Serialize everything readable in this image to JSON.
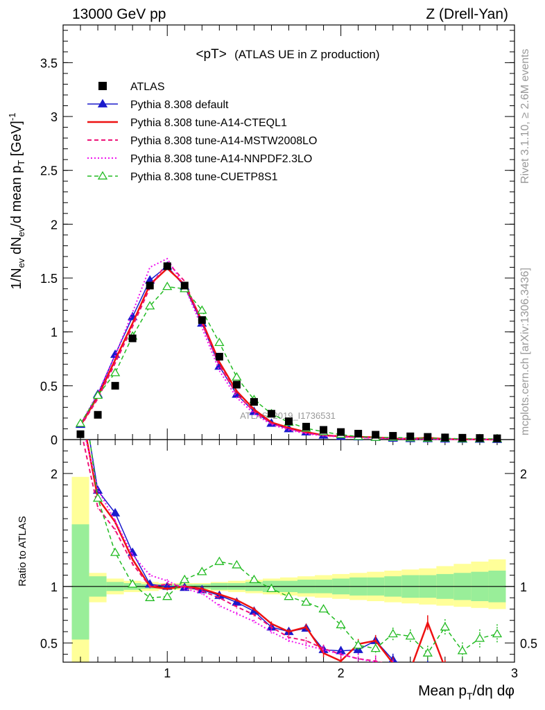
{
  "header": {
    "left": "13000 GeV pp",
    "right": "Z (Drell-Yan)"
  },
  "plot_title": "<pT>",
  "plot_subtitle": "(ATLAS UE in Z production)",
  "watermark": "ATLAS_2019_I1736531",
  "side_labels": {
    "top": "Rivet 3.1.10, ≥ 2.6M events",
    "bottom": "mcplots.cern.ch [arXiv:1306.3436]"
  },
  "axes": {
    "y_main": {
      "base": "1/N",
      "sub1": "ev",
      "mid": " dN",
      "sub2": "ev",
      "mid2": "/d mean p",
      "sub3": "T",
      "unit": " [GeV]",
      "sup": "-1"
    },
    "y_ratio": "Ratio to ATLAS",
    "x": {
      "base": "Mean p",
      "sub": "T",
      "tail": "/dη dφ"
    }
  },
  "chart_data": {
    "type": "line",
    "xlim": [
      0.4,
      3.0
    ],
    "main": {
      "ylim": [
        0,
        3.85
      ],
      "yticks": [
        0,
        0.5,
        1,
        1.5,
        2,
        2.5,
        3,
        3.5
      ],
      "ytick_labels": [
        "0",
        "0.5",
        "1",
        "1.5",
        "2",
        "2.5",
        "3",
        "3.5"
      ]
    },
    "ratio": {
      "ylim": [
        0.33,
        2.3
      ],
      "yticks": [
        0.5,
        1,
        2
      ],
      "ytick_labels": [
        "0.5",
        "1",
        "2"
      ],
      "band_x_edges": [
        0.45,
        0.55,
        0.65,
        0.75,
        0.85,
        0.95,
        1.05,
        1.15,
        1.25,
        1.35,
        1.45,
        1.55,
        1.65,
        1.75,
        1.85,
        1.95,
        2.05,
        2.15,
        2.25,
        2.35,
        2.45,
        2.55,
        2.65,
        2.75,
        2.85,
        2.95
      ],
      "band_stat_lo": [
        0.53,
        1.0,
        1.0,
        1.0,
        1.0,
        1.0,
        1.0,
        1.0,
        1.0,
        1.0,
        1.0,
        1.0,
        1.0,
        1.0,
        1.0,
        1.0,
        1.0,
        1.0,
        1.0,
        1.0,
        1.0,
        1.0,
        1.0,
        1.0,
        1.0
      ],
      "band_stat_hi": [
        1.55,
        1.0,
        1.0,
        1.0,
        1.0,
        1.0,
        1.0,
        1.0,
        1.0,
        1.0,
        1.0,
        1.0,
        1.0,
        1.0,
        1.0,
        1.0,
        1.0,
        1.0,
        1.0,
        1.0,
        1.0,
        1.0,
        1.0,
        1.0,
        1.0
      ],
      "band_tot_lo": [
        0.33,
        0.86,
        0.93,
        0.95,
        0.96,
        0.97,
        0.97,
        0.97,
        0.96,
        0.95,
        0.94,
        0.93,
        0.92,
        0.91,
        0.9,
        0.89,
        0.88,
        0.87,
        0.86,
        0.85,
        0.84,
        0.83,
        0.82,
        0.81,
        0.8
      ],
      "band_tot_hi": [
        1.97,
        1.12,
        1.07,
        1.05,
        1.04,
        1.03,
        1.03,
        1.03,
        1.04,
        1.05,
        1.06,
        1.07,
        1.08,
        1.09,
        1.1,
        1.11,
        1.12,
        1.13,
        1.14,
        1.15,
        1.16,
        1.18,
        1.2,
        1.22,
        1.24
      ],
      "band_stat_inner_lo": [
        0.53,
        0.91,
        0.96,
        0.97,
        0.98,
        0.98,
        0.98,
        0.98,
        0.97,
        0.97,
        0.96,
        0.95,
        0.95,
        0.94,
        0.94,
        0.93,
        0.92,
        0.92,
        0.91,
        0.9,
        0.9,
        0.89,
        0.88,
        0.87,
        0.86
      ],
      "band_stat_inner_hi": [
        1.55,
        1.09,
        1.04,
        1.03,
        1.02,
        1.02,
        1.02,
        1.02,
        1.03,
        1.03,
        1.04,
        1.05,
        1.05,
        1.06,
        1.06,
        1.07,
        1.08,
        1.08,
        1.09,
        1.1,
        1.1,
        1.11,
        1.12,
        1.13,
        1.14
      ]
    },
    "xticks": [
      1,
      2,
      3
    ],
    "xtick_labels": [
      "1",
      "2",
      "3"
    ],
    "atlas": {
      "name": "ATLAS",
      "x": [
        0.5,
        0.6,
        0.7,
        0.8,
        0.9,
        1.0,
        1.1,
        1.2,
        1.3,
        1.4,
        1.5,
        1.6,
        1.7,
        1.8,
        1.9,
        2.0,
        2.1,
        2.2,
        2.3,
        2.4,
        2.5,
        2.6,
        2.7,
        2.8,
        2.9
      ],
      "y": [
        0.05,
        0.23,
        0.5,
        0.94,
        1.43,
        1.61,
        1.43,
        1.11,
        0.77,
        0.51,
        0.35,
        0.24,
        0.17,
        0.12,
        0.09,
        0.07,
        0.055,
        0.045,
        0.035,
        0.03,
        0.025,
        0.02,
        0.017,
        0.015,
        0.012
      ]
    },
    "series": [
      {
        "name": "Pythia 8.308 default",
        "color": "#1a1acc",
        "dash": "",
        "marker": "tri-filled",
        "width": 1.5,
        "x": [
          0.5,
          0.6,
          0.7,
          0.8,
          0.9,
          1.0,
          1.1,
          1.2,
          1.3,
          1.4,
          1.5,
          1.6,
          1.7,
          1.8,
          1.9,
          2.0,
          2.1,
          2.2,
          2.3,
          2.4,
          2.5,
          2.6,
          2.7,
          2.8,
          2.9
        ],
        "y": [
          0.14,
          0.42,
          0.79,
          1.14,
          1.48,
          1.61,
          1.42,
          1.08,
          0.68,
          0.42,
          0.26,
          0.15,
          0.1,
          0.07,
          0.04,
          0.03,
          0.024,
          0.02,
          0.012,
          0.008,
          0.007,
          0.005,
          0.003,
          0.002,
          0.001
        ],
        "ratio": [
          2.8,
          1.85,
          1.65,
          1.3,
          1.02,
          1.0,
          0.99,
          0.97,
          0.92,
          0.86,
          0.78,
          0.64,
          0.6,
          0.63,
          0.44,
          0.43,
          0.44,
          0.52,
          0.35,
          0.27,
          0.28,
          0.24,
          0.2,
          0.15,
          0.1
        ]
      },
      {
        "name": "Pythia 8.308 tune-A14-CTEQL1",
        "color": "#ee1111",
        "dash": "",
        "marker": "none",
        "width": 2.5,
        "x": [
          0.5,
          0.6,
          0.7,
          0.8,
          0.9,
          1.0,
          1.1,
          1.2,
          1.3,
          1.4,
          1.5,
          1.6,
          1.7,
          1.8,
          1.9,
          2.0,
          2.1,
          2.2,
          2.3,
          2.4,
          2.5,
          2.6,
          2.7,
          2.8,
          2.9
        ],
        "y": [
          0.13,
          0.4,
          0.74,
          1.08,
          1.44,
          1.59,
          1.44,
          1.1,
          0.72,
          0.45,
          0.28,
          0.16,
          0.11,
          0.07,
          0.04,
          0.03,
          0.025,
          0.022,
          0.01,
          0.008,
          0.017,
          0.005,
          0.003,
          0.002,
          0.001
        ],
        "ratio": [
          2.6,
          1.78,
          1.57,
          1.24,
          1.0,
          0.98,
          1.0,
          0.98,
          0.93,
          0.88,
          0.8,
          0.67,
          0.6,
          0.64,
          0.41,
          0.34,
          0.49,
          0.52,
          0.32,
          0.26,
          0.68,
          0.28,
          0.17,
          0.12,
          0.09
        ]
      },
      {
        "name": "Pythia 8.308 tune-A14-MSTW2008LO",
        "color": "#ee1177",
        "dash": "6,4",
        "marker": "none",
        "width": 2,
        "x": [
          0.5,
          0.6,
          0.7,
          0.8,
          0.9,
          1.0,
          1.1,
          1.2,
          1.3,
          1.4,
          1.5,
          1.6,
          1.7,
          1.8,
          1.9,
          2.0,
          2.1,
          2.2,
          2.3,
          2.4,
          2.5,
          2.6,
          2.7,
          2.8,
          2.9
        ],
        "y": [
          0.12,
          0.38,
          0.71,
          1.05,
          1.41,
          1.65,
          1.47,
          1.08,
          0.69,
          0.42,
          0.26,
          0.15,
          0.1,
          0.06,
          0.04,
          0.03,
          0.02,
          0.015,
          0.01,
          0.007,
          0.005,
          0.004,
          0.003,
          0.002,
          0.001
        ],
        "ratio": [
          2.4,
          1.7,
          1.5,
          1.2,
          1.0,
          1.02,
          1.0,
          0.96,
          0.9,
          0.82,
          0.75,
          0.64,
          0.55,
          0.52,
          0.45,
          0.4,
          0.36,
          0.34,
          0.3,
          0.26,
          0.22,
          0.2,
          0.18,
          0.14,
          0.1
        ]
      },
      {
        "name": "Pythia 8.308 tune-A14-NNPDF2.3LO",
        "color": "#ee11ee",
        "dash": "2,3",
        "marker": "none",
        "width": 2,
        "x": [
          0.5,
          0.6,
          0.7,
          0.8,
          0.9,
          1.0,
          1.1,
          1.2,
          1.3,
          1.4,
          1.5,
          1.6,
          1.7,
          1.8,
          1.9,
          2.0,
          2.1,
          2.2,
          2.3,
          2.4,
          2.5,
          2.6,
          2.7,
          2.8,
          2.9
        ],
        "y": [
          0.14,
          0.43,
          0.78,
          1.18,
          1.6,
          1.68,
          1.42,
          1.04,
          0.64,
          0.39,
          0.24,
          0.14,
          0.09,
          0.055,
          0.035,
          0.025,
          0.018,
          0.013,
          0.009,
          0.006,
          0.004,
          0.003,
          0.002,
          0.0015,
          0.001
        ],
        "ratio": [
          2.5,
          1.86,
          1.58,
          1.28,
          1.1,
          1.05,
          0.98,
          0.94,
          0.83,
          0.76,
          0.69,
          0.6,
          0.52,
          0.48,
          0.44,
          0.4,
          0.36,
          0.33,
          0.29,
          0.25,
          0.22,
          0.19,
          0.17,
          0.14,
          0.1
        ]
      },
      {
        "name": "Pythia 8.308 tune-CUETP8S1",
        "color": "#22bb22",
        "dash": "6,4",
        "marker": "tri-open",
        "width": 1.5,
        "x": [
          0.5,
          0.6,
          0.7,
          0.8,
          0.9,
          1.0,
          1.1,
          1.2,
          1.3,
          1.4,
          1.5,
          1.6,
          1.7,
          1.8,
          1.9,
          2.0,
          2.1,
          2.2,
          2.3,
          2.4,
          2.5,
          2.6,
          2.7,
          2.8,
          2.9
        ],
        "y": [
          0.15,
          0.41,
          0.62,
          0.96,
          1.24,
          1.42,
          1.4,
          1.2,
          0.9,
          0.58,
          0.37,
          0.24,
          0.16,
          0.105,
          0.072,
          0.046,
          0.028,
          0.02,
          0.02,
          0.015,
          0.012,
          0.012,
          0.007,
          0.008,
          0.007
        ],
        "ratio": [
          2.9,
          1.78,
          1.3,
          1.02,
          0.9,
          0.91,
          1.06,
          1.13,
          1.22,
          1.19,
          1.06,
          0.98,
          0.91,
          0.86,
          0.8,
          0.66,
          0.48,
          0.45,
          0.58,
          0.56,
          0.41,
          0.64,
          0.43,
          0.54,
          0.58
        ]
      }
    ]
  }
}
